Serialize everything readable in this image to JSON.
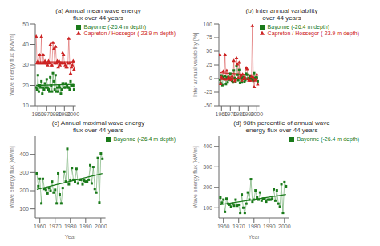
{
  "chart_data": [
    {
      "type": "line",
      "title": "(a) Annual mean wave energy\nflux over 44 years",
      "y_label": "Wave energy flux [kW/m]",
      "x": [
        1958,
        1959,
        1960,
        1961,
        1962,
        1963,
        1964,
        1965,
        1966,
        1967,
        1968,
        1969,
        1970,
        1971,
        1972,
        1973,
        1974,
        1975,
        1976,
        1977,
        1978,
        1979,
        1980,
        1981,
        1982,
        1983,
        1984,
        1985,
        1986,
        1987,
        1988,
        1989,
        1990,
        1991,
        1992,
        1993,
        1994,
        1995,
        1996,
        1997,
        1998,
        1999,
        2000,
        2001
      ],
      "xlim": [
        1957,
        2003
      ],
      "xticks": [
        1960,
        1970,
        1980,
        1990,
        2000
      ],
      "ylim": [
        10,
        50
      ],
      "yticks": [
        10,
        20,
        30,
        40,
        50
      ],
      "grid": false,
      "legend": "upper right",
      "series": [
        {
          "name": "Bayonne (-26.4 m depth)",
          "color": "#1a7a1a",
          "marker": "square",
          "values": [
            19,
            18,
            25,
            17,
            20,
            19,
            22,
            16,
            19,
            18,
            21,
            19,
            23,
            19,
            18,
            17,
            24,
            20,
            17,
            26,
            22,
            18,
            25,
            17,
            19,
            17,
            20,
            19,
            16,
            18,
            21,
            21,
            19,
            19,
            21,
            20,
            19,
            19,
            18,
            22,
            20,
            20,
            20,
            18
          ]
        },
        {
          "name": "Capreton / Hossegor (-23.9 m depth)",
          "color": "#cc2222",
          "marker": "triangle",
          "values": [
            44,
            31,
            32,
            31,
            35,
            31,
            44,
            31,
            35,
            31,
            32,
            31,
            31,
            30,
            32,
            31,
            40,
            30,
            30,
            41,
            38,
            31,
            39,
            31,
            32,
            29,
            32,
            30,
            31,
            31,
            36,
            35,
            31,
            30,
            29,
            29,
            31,
            43,
            31,
            26,
            29,
            30,
            32,
            28
          ]
        },
        {
          "color": "#1a7a1a",
          "x": [
            1958,
            2001
          ],
          "values": [
            20.0,
            20.5
          ]
        },
        {
          "color": "#cc2222",
          "x": [
            1958,
            2001
          ],
          "values": [
            31.5,
            31.5
          ]
        }
      ]
    },
    {
      "type": "line",
      "title": "(b) Inter annual variability\nover 44 years",
      "y_label": "Inter annual variability [%]",
      "x": [
        1958,
        1959,
        1960,
        1961,
        1962,
        1963,
        1964,
        1965,
        1966,
        1967,
        1968,
        1969,
        1970,
        1971,
        1972,
        1973,
        1974,
        1975,
        1976,
        1977,
        1978,
        1979,
        1980,
        1981,
        1982,
        1983,
        1984,
        1985,
        1986,
        1987,
        1988,
        1989,
        1990,
        1991,
        1992,
        1993,
        1994,
        1995,
        1996,
        1997,
        1998,
        1999,
        2000,
        2001
      ],
      "xlim": [
        1957,
        2003
      ],
      "xticks": [
        1960,
        1970,
        1980,
        1990,
        2000
      ],
      "ylim": [
        -50,
        100
      ],
      "yticks": [
        -50,
        -25,
        0,
        25,
        50,
        75,
        100
      ],
      "grid": false,
      "legend": "upper right",
      "series": [
        {
          "name": "Bayonne (-26.4 m depth)",
          "color": "#1a7a1a",
          "marker": "square",
          "values": [
            -2,
            -8,
            6,
            -12,
            3,
            -1,
            5,
            -10,
            2,
            -7,
            3,
            -2,
            9,
            0,
            -4,
            -7,
            15,
            1,
            -6,
            23,
            7,
            -3,
            16,
            -8,
            0,
            -7,
            3,
            -1,
            -6,
            -3,
            9,
            7,
            -1,
            0,
            5,
            1,
            -2,
            0,
            -4,
            10,
            1,
            2,
            2,
            -5
          ]
        },
        {
          "name": "Capreton / Hossegor (-23.9 m depth)",
          "color": "#cc2222",
          "marker": "triangle",
          "values": [
            44,
            -9,
            3,
            0,
            14,
            0,
            44,
            -1,
            15,
            0,
            3,
            0,
            1,
            -2,
            5,
            0,
            33,
            -4,
            -1,
            38,
            27,
            1,
            30,
            1,
            6,
            -3,
            8,
            0,
            3,
            0,
            20,
            18,
            0,
            -3,
            -3,
            -3,
            4,
            97,
            2,
            -15,
            -3,
            -1,
            8,
            -10
          ]
        },
        {
          "color": "#1a7a1a",
          "x": [
            1958,
            2001
          ],
          "values": [
            -0.6455,
            2.0545
          ]
        },
        {
          "color": "#cc2222",
          "x": [
            1958,
            2001
          ],
          "values": [
            10.7182,
            5.9636
          ]
        }
      ]
    },
    {
      "type": "line",
      "title": "(c) Annual maximal wave energy\nflux over 44 years",
      "y_label": "Wave energy flux [kW/m]",
      "x_label": "Year",
      "x": [
        1958,
        1959,
        1960,
        1961,
        1962,
        1963,
        1964,
        1965,
        1966,
        1967,
        1968,
        1969,
        1970,
        1971,
        1972,
        1973,
        1974,
        1975,
        1976,
        1977,
        1978,
        1979,
        1980,
        1981,
        1982,
        1983,
        1984,
        1985,
        1986,
        1987,
        1988,
        1989,
        1990,
        1991,
        1992,
        1993,
        1994,
        1995,
        1996,
        1997,
        1998,
        1999,
        2000,
        2001
      ],
      "xlim": [
        1957,
        2003
      ],
      "xticks": [
        1960,
        1970,
        1980,
        1990,
        2000
      ],
      "ylim": [
        50,
        500
      ],
      "yticks": [
        100,
        200,
        300,
        400
      ],
      "grid": false,
      "legend": "upper right",
      "series": [
        {
          "name": "Bayonne (-26.4 m depth)",
          "color": "#1a7a1a",
          "marker": "square",
          "values": [
            295,
            225,
            265,
            130,
            265,
            210,
            205,
            185,
            215,
            200,
            250,
            190,
            205,
            130,
            295,
            180,
            130,
            215,
            305,
            250,
            430,
            235,
            255,
            325,
            260,
            250,
            320,
            240,
            260,
            260,
            235,
            255,
            250,
            250,
            260,
            340,
            240,
            330,
            210,
            190,
            380,
            135,
            405,
            375
          ]
        },
        {
          "color": "#1a7a1a",
          "x": [
            1958,
            2001
          ],
          "values": [
            207.2273,
            294.3636
          ]
        }
      ]
    },
    {
      "type": "line",
      "title": "(d) 98th percentile of annual wave\nenergy flux over 44 years",
      "y_label": "Wave energy flux [kW/m]",
      "x_label": "Year",
      "x": [
        1958,
        1959,
        1960,
        1961,
        1962,
        1963,
        1964,
        1965,
        1966,
        1967,
        1968,
        1969,
        1970,
        1971,
        1972,
        1973,
        1974,
        1975,
        1976,
        1977,
        1978,
        1979,
        1980,
        1981,
        1982,
        1983,
        1984,
        1985,
        1986,
        1987,
        1988,
        1989,
        1990,
        1991,
        1992,
        1993,
        1994,
        1995,
        1996,
        1997,
        1998,
        1999,
        2000,
        2001
      ],
      "xlim": [
        1957,
        2003
      ],
      "xticks": [
        1960,
        1970,
        1980,
        1990,
        2000
      ],
      "ylim": [
        50,
        450
      ],
      "yticks": [
        100,
        200,
        300,
        400
      ],
      "grid": false,
      "legend": "upper right",
      "series": [
        {
          "name": "Bayonne (-26.4 m depth)",
          "color": "#1a7a1a",
          "marker": "square",
          "values": [
            150,
            125,
            140,
            80,
            145,
            120,
            115,
            105,
            120,
            110,
            140,
            110,
            115,
            75,
            165,
            100,
            75,
            120,
            175,
            140,
            240,
            130,
            140,
            185,
            150,
            140,
            175,
            135,
            145,
            145,
            130,
            140,
            140,
            140,
            145,
            190,
            135,
            185,
            120,
            105,
            215,
            75,
            225,
            205
          ]
        },
        {
          "color": "#1a7a1a",
          "x": [
            1958,
            2001
          ],
          "values": [
            115.0606,
            164.9394
          ]
        }
      ]
    }
  ]
}
